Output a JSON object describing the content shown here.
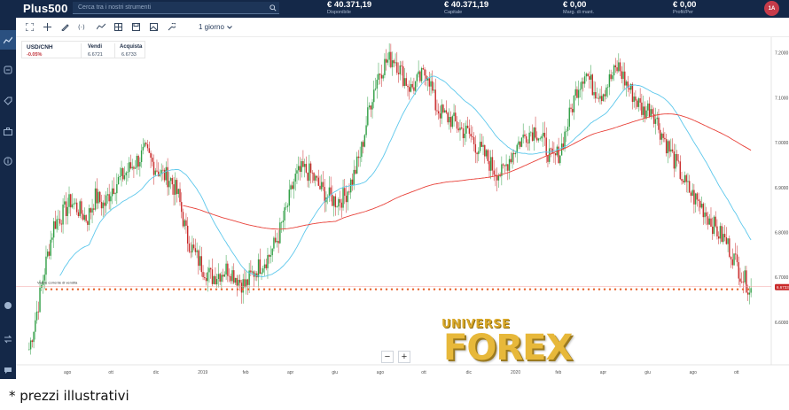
{
  "header": {
    "logo": "Plus500",
    "search_placeholder": "Cerca tra i nostri strumenti",
    "stats": [
      {
        "value": "€ 40.371,19",
        "label": "Disponibile"
      },
      {
        "value": "€ 40.371,19",
        "label": "Capitale"
      },
      {
        "value": "€ 0,00",
        "label": "Marg. di mant."
      },
      {
        "value": "€ 0,00",
        "label": "Profit/Per"
      }
    ],
    "avatar": "1A"
  },
  "sidebar": {
    "items": [
      {
        "icon": "chart-icon",
        "active": true
      },
      {
        "icon": "exchange-icon",
        "active": false
      },
      {
        "icon": "tag-icon",
        "active": false
      },
      {
        "icon": "briefcase-icon",
        "active": false
      },
      {
        "icon": "info-icon",
        "active": false
      },
      {
        "icon": "toggle-icon",
        "active": false
      },
      {
        "icon": "swap-icon",
        "active": false
      },
      {
        "icon": "chat-icon",
        "active": false
      }
    ]
  },
  "toolbar": {
    "tools": [
      "fullscreen-icon",
      "crosshair-icon",
      "draw-icon",
      "fx-icon",
      "trend-icon",
      "layout-icon",
      "save-icon",
      "image-icon",
      "settings-icon"
    ],
    "period": "1 giorno"
  },
  "instrument": {
    "name": "USD/CNH",
    "change": "-0.05%",
    "sell_label": "Vendi",
    "sell_value": "6.6721",
    "buy_label": "Acquista",
    "buy_value": "6.6733"
  },
  "chart_data": {
    "type": "candlestick",
    "x_labels": [
      "ago",
      "ott",
      "dic",
      "2019",
      "feb",
      "apr",
      "giu",
      "ago",
      "ott",
      "dic",
      "2020",
      "feb",
      "apr",
      "giu",
      "ago",
      "ott"
    ],
    "price_labels": [
      "7.2000",
      "7.1000",
      "7.0000",
      "6.9000",
      "6.8000",
      "6.7000",
      "6.6000"
    ],
    "current_price": "6.6733",
    "order_line_label": "Valore corrente di vendita",
    "colors": {
      "up": "#2f9e44",
      "down": "#c92a2a",
      "ma_short": "#5ec8ec",
      "ma_long": "#e8423a",
      "order": "#e8642c"
    },
    "closes": [
      6.54,
      6.63,
      6.73,
      6.82,
      6.84,
      6.87,
      6.85,
      6.83,
      6.88,
      6.86,
      6.9,
      6.92,
      6.94,
      6.96,
      6.98,
      6.95,
      6.93,
      6.92,
      6.88,
      6.79,
      6.75,
      6.72,
      6.7,
      6.71,
      6.72,
      6.7,
      6.68,
      6.71,
      6.73,
      6.75,
      6.79,
      6.85,
      6.92,
      6.94,
      6.93,
      6.9,
      6.88,
      6.87,
      6.88,
      6.92,
      6.98,
      7.08,
      7.15,
      7.18,
      7.19,
      7.15,
      7.12,
      7.14,
      7.16,
      7.08,
      7.06,
      7.05,
      7.03,
      7.02,
      6.99,
      6.97,
      6.94,
      6.93,
      6.97,
      7.0,
      7.02,
      7.03,
      7.0,
      6.96,
      6.98,
      7.05,
      7.12,
      7.16,
      7.12,
      7.11,
      7.14,
      7.17,
      7.13,
      7.1,
      7.07,
      7.08,
      7.03,
      6.99,
      6.95,
      6.91,
      6.88,
      6.86,
      6.83,
      6.8,
      6.78,
      6.74,
      6.7,
      6.673
    ]
  },
  "zoom": {
    "minus": "−",
    "plus": "+"
  },
  "watermark": {
    "top": "UNIVERSE",
    "main": "FOREX"
  },
  "footnote": "* prezzi illustrativi"
}
